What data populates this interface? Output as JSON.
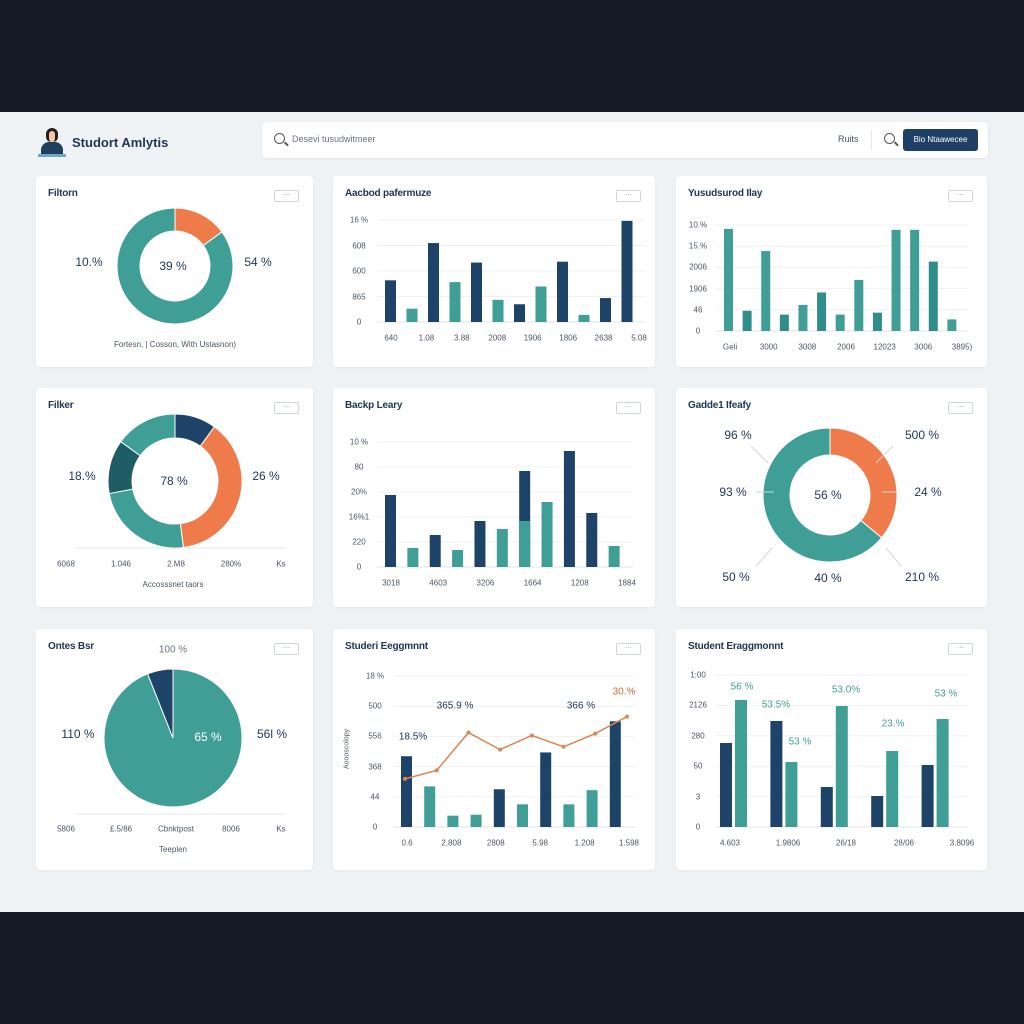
{
  "header": {
    "title": "Studort Amlytis",
    "search_placeholder": "Desevi tusudwitmeer",
    "filter_label": "Ruits",
    "button_label": "Bio Ntaawecee"
  },
  "colors": {
    "teal": "#3f9e96",
    "navy": "#1d4468",
    "orange": "#ef7a4a",
    "darkteal": "#1f5d66",
    "accent_button": "#1f3f66"
  },
  "cards": [
    {
      "title": "Filtorn",
      "menu_icon": "more-icon",
      "labels": [
        "10.%",
        "39 %",
        "54 %"
      ],
      "footer": "Fortesn, | Cosson, With Ustasnon)",
      "chart_data": {
        "type": "pie",
        "donut": true,
        "slices": [
          {
            "value": 15,
            "color": "#ef7a4a"
          },
          {
            "value": 85,
            "color": "#3f9e96"
          }
        ]
      }
    },
    {
      "title": "Aacbod pafermuze",
      "menu_icon": "more-icon",
      "chart_data": {
        "type": "bar",
        "ylim": [
          0,
          115
        ],
        "yticks": [
          "0",
          "865",
          "600",
          "608",
          "16 %"
        ],
        "xticks": [
          "640",
          "1.08",
          "3.88",
          "2008",
          "1906",
          "1806",
          "2638",
          "5.08"
        ],
        "values": [
          47,
          15,
          89,
          45,
          67,
          25,
          20,
          40,
          68,
          8,
          27,
          114
        ],
        "colors": [
          "navy",
          "teal",
          "navy",
          "teal",
          "navy",
          "teal",
          "navy",
          "teal",
          "navy",
          "teal",
          "navy",
          "navy"
        ]
      }
    },
    {
      "title": "Yusudsurod Ilay",
      "menu_icon": "more-icon",
      "chart_data": {
        "type": "bar",
        "ylim": [
          0,
          110
        ],
        "yticks": [
          "0",
          "46",
          "1906",
          "2006",
          "15.%",
          "10.%"
        ],
        "xticks": [
          "Geli",
          "3000",
          "3008",
          "2006",
          "12023",
          "3006",
          "3895)"
        ],
        "values": [
          106,
          21,
          83,
          17,
          27,
          40,
          17,
          53,
          19,
          105,
          105,
          72,
          12
        ],
        "colors": [
          "teal",
          "darkteal2",
          "teal",
          "darkteal2",
          "teal",
          "darkteal2",
          "teal",
          "teal",
          "darkteal2",
          "teal",
          "teal",
          "darkteal2",
          "teal"
        ]
      }
    },
    {
      "title": "Filker",
      "menu_icon": "more-icon",
      "labels": [
        "18.%",
        "78 %",
        "26 %"
      ],
      "xticks": [
        "6068",
        "1.046",
        "2.M8",
        "280%",
        "Ks"
      ],
      "footer": "Accosssnet taors",
      "chart_data": {
        "type": "pie",
        "donut": true,
        "slices": [
          {
            "value": 10,
            "color": "#1d4468"
          },
          {
            "value": 38,
            "color": "#ef7a4a"
          },
          {
            "value": 24,
            "color": "#3f9e96"
          },
          {
            "value": 13,
            "color": "#1f5d66"
          },
          {
            "value": 15,
            "color": "#3f9e96"
          }
        ]
      }
    },
    {
      "title": "Backp Leary",
      "menu_icon": "more-icon",
      "chart_data": {
        "type": "bar",
        "ylim": [
          0,
          125
        ],
        "yticks": [
          "0",
          "220",
          "16%1",
          "20%",
          "80",
          "10 %"
        ],
        "xticks": [
          "3018",
          "4603",
          "3206",
          "1664",
          "1208",
          "1884"
        ],
        "values": [
          72,
          19,
          32,
          17,
          46,
          38,
          96,
          65,
          116,
          54,
          21
        ],
        "stack": {
          "6": 46
        },
        "colors": [
          "navy",
          "teal",
          "navy",
          "teal",
          "navy",
          "teal",
          "navy",
          "teal",
          "navy",
          "navy",
          "teal"
        ]
      }
    },
    {
      "title": "Gadde1 Ifeafy",
      "menu_icon": "more-icon",
      "labels": [
        "96 %",
        "500 %",
        "93 %",
        "56 %",
        "24 %",
        "50 %",
        "40 %",
        "210 %"
      ],
      "chart_data": {
        "type": "pie",
        "donut": true,
        "slices": [
          {
            "value": 36,
            "color": "#ef7a4a"
          },
          {
            "value": 64,
            "color": "#3f9e96"
          }
        ]
      }
    },
    {
      "title": "Ontes Bsr",
      "menu_icon": "more-icon",
      "labels": [
        "100 %",
        "110 %",
        "65 %",
        "56l %"
      ],
      "xticks": [
        "5806",
        "£.5/86",
        "Cbnktpost",
        "8006",
        "Ks"
      ],
      "footer": "Teeplen",
      "chart_data": {
        "type": "pie",
        "donut": false,
        "slices": [
          {
            "value": 94,
            "color": "#3f9e96"
          },
          {
            "value": 6,
            "color": "#1d4468"
          }
        ]
      }
    },
    {
      "title": "Studeri Eeggmnnt",
      "menu_icon": "more-icon",
      "ylabel": "Aoooscolopy",
      "annotations": [
        "18.5%",
        "365.9 %",
        "366 %",
        "30.%"
      ],
      "chart_data": {
        "type": "combo",
        "ylim": [
          0,
          160
        ],
        "yticks": [
          "0",
          "44",
          "368",
          "556",
          "500",
          "18 %"
        ],
        "xticks": [
          "0.6",
          "2.808",
          "2808",
          "5.98",
          "1.208",
          "1.598"
        ],
        "values": [
          75,
          43,
          12,
          13,
          40,
          24,
          79,
          24,
          39,
          112
        ],
        "colors": [
          "navy",
          "teal",
          "teal",
          "teal",
          "navy",
          "teal",
          "navy",
          "teal",
          "teal",
          "navy"
        ],
        "line": [
          51,
          60,
          100,
          82,
          97,
          85,
          99,
          117
        ]
      }
    },
    {
      "title": "Student Eraggmonnt",
      "menu_icon": "more-icon",
      "annotations": [
        "56 %",
        "53.5%",
        "53 %",
        "53.0%",
        "23.%",
        "53 %"
      ],
      "chart_data": {
        "type": "grouped",
        "ylim": [
          0,
          152
        ],
        "yticks": [
          "0",
          "3",
          "50",
          "280",
          "2126",
          "1:00"
        ],
        "xticks": [
          "4.603",
          "1.9806",
          "26/18",
          "28/06",
          "3.8096"
        ],
        "groups": [
          [
            84,
            127
          ],
          [
            106,
            65
          ],
          [
            40,
            121
          ],
          [
            31,
            76
          ],
          [
            62,
            108
          ]
        ]
      }
    }
  ]
}
